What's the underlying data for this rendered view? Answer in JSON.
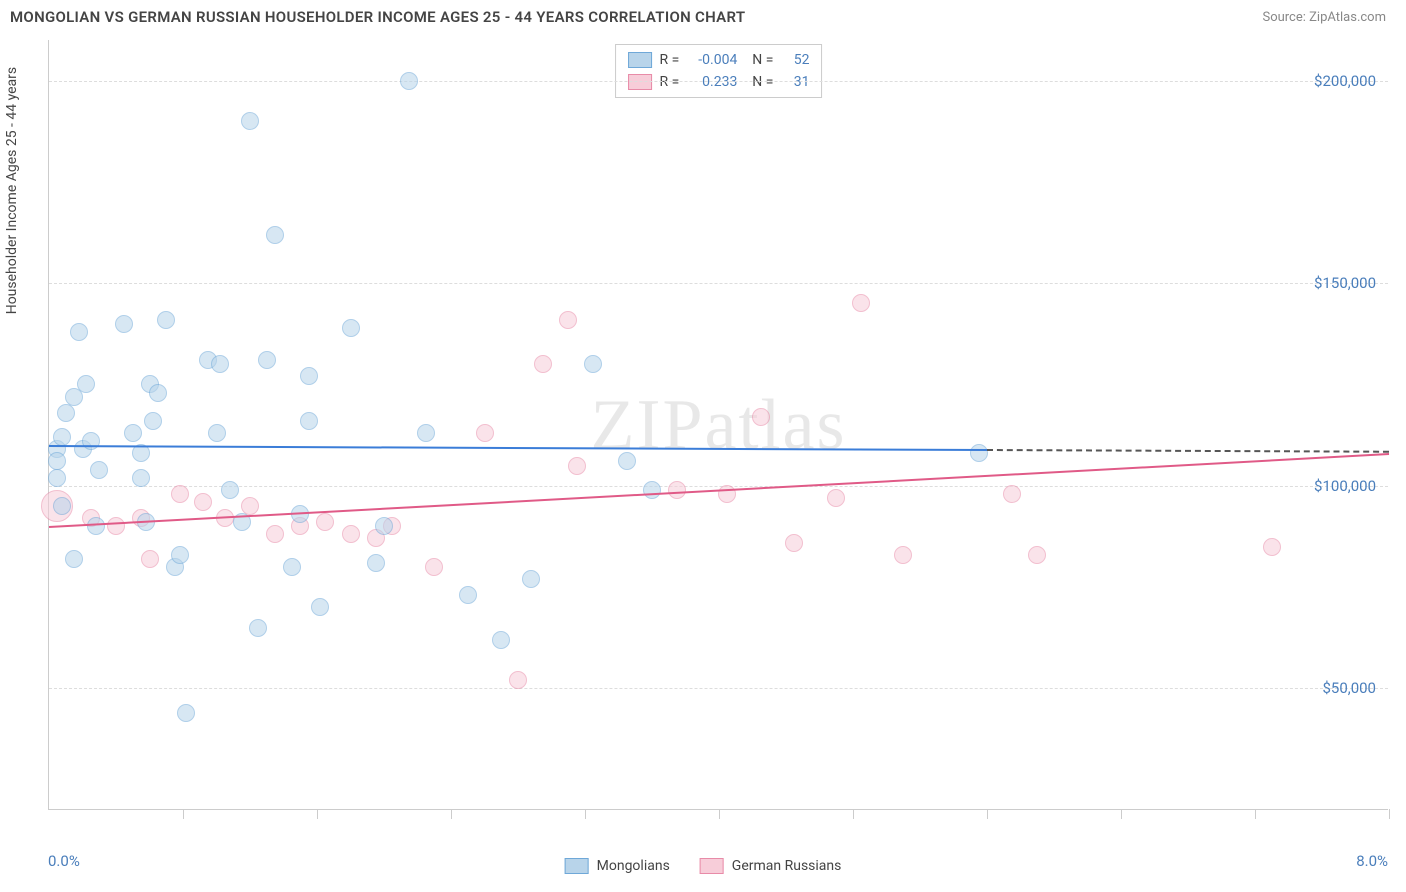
{
  "header": {
    "title": "MONGOLIAN VS GERMAN RUSSIAN HOUSEHOLDER INCOME AGES 25 - 44 YEARS CORRELATION CHART",
    "source": "Source: ZipAtlas.com"
  },
  "chart": {
    "type": "scatter",
    "watermark": "ZIPatlas",
    "ylabel": "Householder Income Ages 25 - 44 years",
    "xlim": [
      0,
      8
    ],
    "ylim": [
      20000,
      210000
    ],
    "x_axis": {
      "min_label": "0.0%",
      "max_label": "8.0%"
    },
    "y_ticks": [
      {
        "value": 50000,
        "label": "$50,000"
      },
      {
        "value": 100000,
        "label": "$100,000"
      },
      {
        "value": 150000,
        "label": "$150,000"
      },
      {
        "value": 200000,
        "label": "$200,000"
      }
    ],
    "x_tick_positions": [
      0.8,
      1.6,
      2.4,
      3.2,
      4.0,
      4.8,
      5.6,
      6.4,
      7.2,
      8.0
    ],
    "background_color": "#ffffff",
    "grid_color": "#dddddd",
    "tick_label_color": "#4a7ebb",
    "series": {
      "mongolians": {
        "label": "Mongolians",
        "color_fill": "#b8d4ea",
        "color_stroke": "#6fa8d8",
        "fill_opacity": 0.55,
        "marker_radius": 9,
        "r_value": "-0.004",
        "n_value": "52",
        "trend": {
          "x1": 0.0,
          "y1": 110000,
          "x2": 5.6,
          "y2": 109000,
          "color": "#3b7dd8",
          "extend_dash_to_x": 8.0
        },
        "points": [
          {
            "x": 0.05,
            "y": 109000
          },
          {
            "x": 0.05,
            "y": 106000
          },
          {
            "x": 0.05,
            "y": 102000
          },
          {
            "x": 0.08,
            "y": 112000
          },
          {
            "x": 0.08,
            "y": 95000
          },
          {
            "x": 0.1,
            "y": 118000
          },
          {
            "x": 0.15,
            "y": 122000
          },
          {
            "x": 0.15,
            "y": 82000
          },
          {
            "x": 0.18,
            "y": 138000
          },
          {
            "x": 0.2,
            "y": 109000
          },
          {
            "x": 0.22,
            "y": 125000
          },
          {
            "x": 0.25,
            "y": 111000
          },
          {
            "x": 0.28,
            "y": 90000
          },
          {
            "x": 0.3,
            "y": 104000
          },
          {
            "x": 0.45,
            "y": 140000
          },
          {
            "x": 0.5,
            "y": 113000
          },
          {
            "x": 0.55,
            "y": 102000
          },
          {
            "x": 0.55,
            "y": 108000
          },
          {
            "x": 0.58,
            "y": 91000
          },
          {
            "x": 0.6,
            "y": 125000
          },
          {
            "x": 0.65,
            "y": 123000
          },
          {
            "x": 0.62,
            "y": 116000
          },
          {
            "x": 0.7,
            "y": 141000
          },
          {
            "x": 0.75,
            "y": 80000
          },
          {
            "x": 0.78,
            "y": 83000
          },
          {
            "x": 0.82,
            "y": 44000
          },
          {
            "x": 0.95,
            "y": 131000
          },
          {
            "x": 1.0,
            "y": 113000
          },
          {
            "x": 1.02,
            "y": 130000
          },
          {
            "x": 1.08,
            "y": 99000
          },
          {
            "x": 1.15,
            "y": 91000
          },
          {
            "x": 1.2,
            "y": 190000
          },
          {
            "x": 1.25,
            "y": 65000
          },
          {
            "x": 1.3,
            "y": 131000
          },
          {
            "x": 1.35,
            "y": 162000
          },
          {
            "x": 1.45,
            "y": 80000
          },
          {
            "x": 1.5,
            "y": 93000
          },
          {
            "x": 1.55,
            "y": 116000
          },
          {
            "x": 1.55,
            "y": 127000
          },
          {
            "x": 1.62,
            "y": 70000
          },
          {
            "x": 1.8,
            "y": 139000
          },
          {
            "x": 1.95,
            "y": 81000
          },
          {
            "x": 2.0,
            "y": 90000
          },
          {
            "x": 2.15,
            "y": 200000
          },
          {
            "x": 2.25,
            "y": 113000
          },
          {
            "x": 2.5,
            "y": 73000
          },
          {
            "x": 2.7,
            "y": 62000
          },
          {
            "x": 2.88,
            "y": 77000
          },
          {
            "x": 3.25,
            "y": 130000
          },
          {
            "x": 3.45,
            "y": 106000
          },
          {
            "x": 3.6,
            "y": 99000
          },
          {
            "x": 5.55,
            "y": 108000
          }
        ]
      },
      "german_russians": {
        "label": "German Russians",
        "color_fill": "#f7cdd9",
        "color_stroke": "#e88ba8",
        "fill_opacity": 0.55,
        "marker_radius": 9,
        "r_value": "0.233",
        "n_value": "31",
        "trend": {
          "x1": 0.0,
          "y1": 90000,
          "x2": 8.0,
          "y2": 108000,
          "color": "#e05a87"
        },
        "points": [
          {
            "x": 0.05,
            "y": 95000,
            "r": 16
          },
          {
            "x": 0.25,
            "y": 92000
          },
          {
            "x": 0.4,
            "y": 90000
          },
          {
            "x": 0.55,
            "y": 92000
          },
          {
            "x": 0.6,
            "y": 82000
          },
          {
            "x": 0.78,
            "y": 98000
          },
          {
            "x": 0.92,
            "y": 96000
          },
          {
            "x": 1.05,
            "y": 92000
          },
          {
            "x": 1.2,
            "y": 95000
          },
          {
            "x": 1.35,
            "y": 88000
          },
          {
            "x": 1.5,
            "y": 90000
          },
          {
            "x": 1.65,
            "y": 91000
          },
          {
            "x": 1.8,
            "y": 88000
          },
          {
            "x": 1.95,
            "y": 87000
          },
          {
            "x": 2.05,
            "y": 90000
          },
          {
            "x": 2.3,
            "y": 80000
          },
          {
            "x": 2.6,
            "y": 113000
          },
          {
            "x": 2.8,
            "y": 52000
          },
          {
            "x": 2.95,
            "y": 130000
          },
          {
            "x": 3.1,
            "y": 141000
          },
          {
            "x": 3.15,
            "y": 105000
          },
          {
            "x": 3.75,
            "y": 99000
          },
          {
            "x": 4.05,
            "y": 98000
          },
          {
            "x": 4.25,
            "y": 117000
          },
          {
            "x": 4.45,
            "y": 86000
          },
          {
            "x": 4.7,
            "y": 97000
          },
          {
            "x": 4.85,
            "y": 145000
          },
          {
            "x": 5.1,
            "y": 83000
          },
          {
            "x": 5.75,
            "y": 98000
          },
          {
            "x": 5.9,
            "y": 83000
          },
          {
            "x": 7.3,
            "y": 85000
          }
        ]
      }
    },
    "bottom_legend": [
      {
        "swatch_fill": "#b8d4ea",
        "swatch_stroke": "#6fa8d8",
        "label": "Mongolians"
      },
      {
        "swatch_fill": "#f7cdd9",
        "swatch_stroke": "#e88ba8",
        "label": "German Russians"
      }
    ]
  }
}
